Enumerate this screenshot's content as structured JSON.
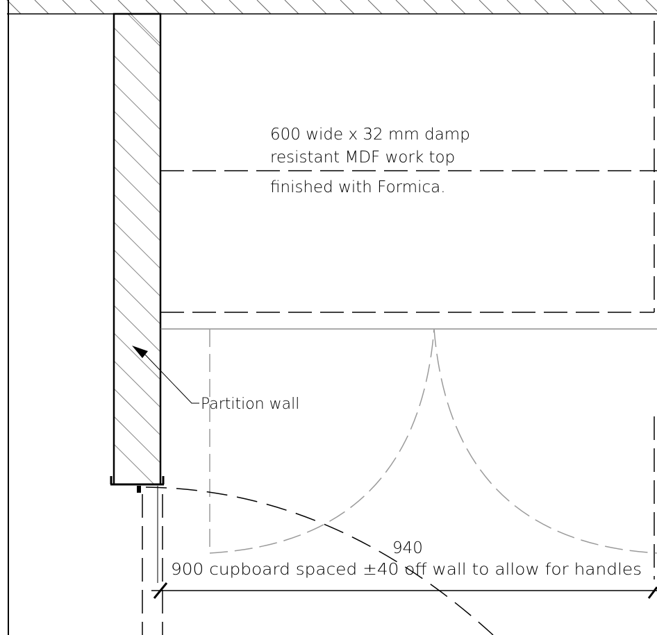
{
  "annotations": {
    "worktop_line1": "600 wide x 32 mm damp",
    "worktop_line2": "resistant MDF work top",
    "worktop_line3": "finished with Formica.",
    "partition_label": "Partition wall",
    "dimension_value": "940",
    "cupboard_note": "900 cupboard spaced ±40 off wall to allow for handles"
  },
  "colors": {
    "line": "#000000",
    "hatch": "#777777",
    "door_swing": "#9a9a9a"
  }
}
